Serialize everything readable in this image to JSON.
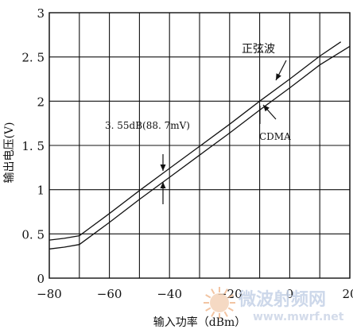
{
  "chart_data": {
    "type": "line",
    "title": "",
    "xlabel": "输入功率（dBm）",
    "ylabel": "输出电压(V)",
    "xlim": [
      -80,
      20
    ],
    "ylim": [
      0,
      3
    ],
    "x_ticks": [
      -80,
      -60,
      -40,
      -20,
      0,
      20
    ],
    "x_tick_labels": [
      "−80",
      "−60",
      "−40",
      "−20",
      "0",
      "20"
    ],
    "y_ticks": [
      0,
      0.5,
      1,
      1.5,
      2,
      2.5,
      3
    ],
    "y_tick_labels": [
      "0",
      "0. 5",
      "1",
      "1. 5",
      "2",
      "2. 5",
      "3"
    ],
    "grid": true,
    "series": [
      {
        "name": "正弦波",
        "x": [
          -80,
          -75,
          -70,
          -60,
          -50,
          -40,
          -30,
          -20,
          -10,
          0,
          10,
          17
        ],
        "y": [
          0.43,
          0.45,
          0.48,
          0.73,
          0.99,
          1.24,
          1.49,
          1.74,
          2.0,
          2.25,
          2.51,
          2.67
        ]
      },
      {
        "name": "CDMA",
        "x": [
          -80,
          -75,
          -70,
          -60,
          -50,
          -40,
          -30,
          -20,
          -10,
          0,
          10,
          20
        ],
        "y": [
          0.33,
          0.35,
          0.38,
          0.63,
          0.89,
          1.14,
          1.39,
          1.64,
          1.9,
          2.15,
          2.41,
          2.62
        ]
      }
    ],
    "annotations": {
      "sine_label": "正弦波",
      "cdma_label": "CDMA",
      "diff_label": "3. 55dB(88. 7mV)"
    }
  },
  "watermark": {
    "cn": "微波射频网",
    "url": "www.mwrf.net"
  }
}
